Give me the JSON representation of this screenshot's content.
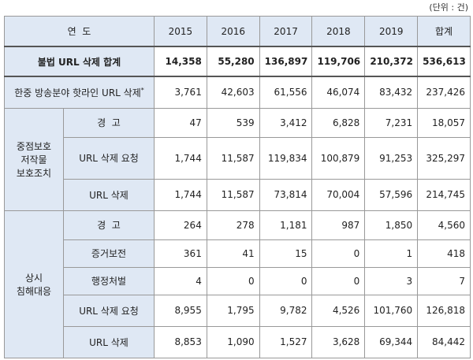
{
  "unit": "(단위 : 건)",
  "header": [
    "연  도",
    "2015",
    "2016",
    "2017",
    "2018",
    "2019",
    "합계"
  ],
  "total": {
    "label": "불법 URL 삭제 합계",
    "values": [
      "14,358",
      "55,280",
      "136,897",
      "119,706",
      "210,372",
      "536,613"
    ]
  },
  "hotline": {
    "label": "한중 방송분야 핫라인 URL 삭제",
    "note": "*",
    "values": [
      "3,761",
      "42,603",
      "61,556",
      "46,074",
      "83,432",
      "237,426"
    ]
  },
  "groups": [
    {
      "label": [
        "중점보호",
        "저작물",
        "보호조치"
      ],
      "rows": [
        {
          "label": "경  고",
          "values": [
            "47",
            "539",
            "3,412",
            "6,828",
            "7,231",
            "18,057"
          ]
        },
        {
          "label": "URL 삭제 요청",
          "values": [
            "1,744",
            "11,587",
            "119,834",
            "100,879",
            "91,253",
            "325,297"
          ]
        },
        {
          "label": "URL 삭제",
          "values": [
            "1,744",
            "11,587",
            "73,814",
            "70,004",
            "57,596",
            "214,745"
          ]
        }
      ]
    },
    {
      "label": [
        "상시",
        "침해대응"
      ],
      "rows": [
        {
          "label": "경  고",
          "values": [
            "264",
            "278",
            "1,181",
            "987",
            "1,850",
            "4,560"
          ]
        },
        {
          "label": "증거보전",
          "values": [
            "361",
            "41",
            "15",
            "0",
            "1",
            "418"
          ]
        },
        {
          "label": "행정처벌",
          "values": [
            "4",
            "0",
            "0",
            "0",
            "3",
            "7"
          ]
        },
        {
          "label": "URL 삭제 요청",
          "values": [
            "8,955",
            "1,795",
            "9,782",
            "4,526",
            "101,760",
            "126,818"
          ]
        },
        {
          "label": "URL 삭제",
          "values": [
            "8,853",
            "1,090",
            "1,527",
            "3,628",
            "69,344",
            "84,442"
          ]
        }
      ]
    }
  ]
}
